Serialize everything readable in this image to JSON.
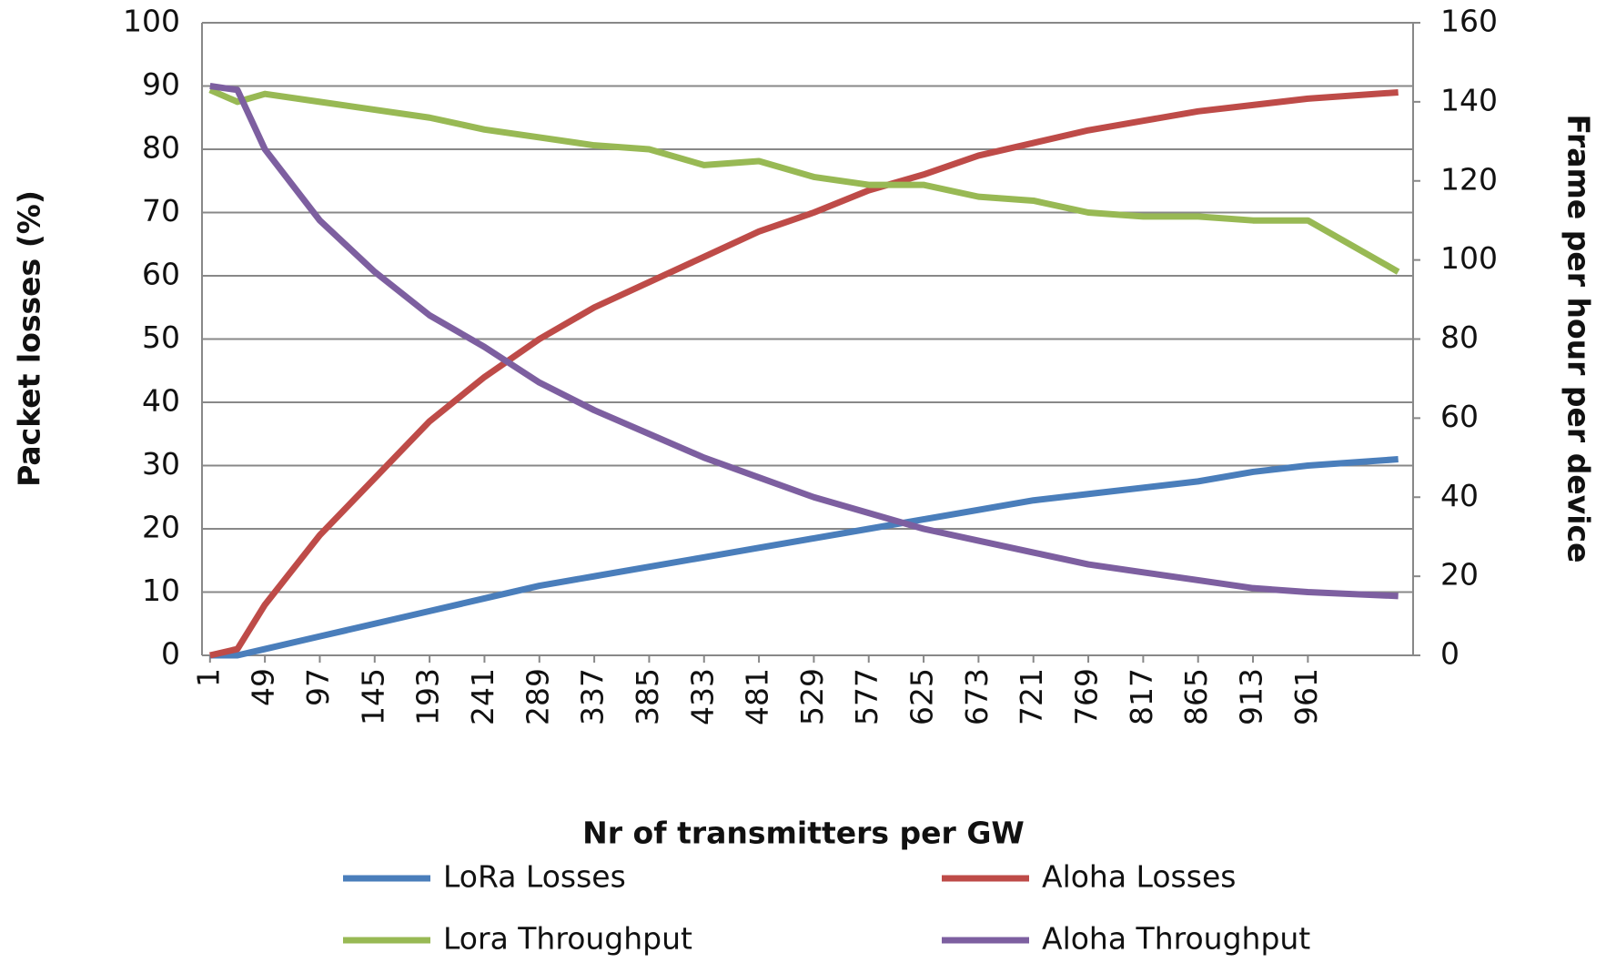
{
  "chart_data": {
    "type": "line",
    "x_label": "Nr of transmitters per GW",
    "y_label": "Packet losses (%)",
    "y2_label": "Frame per hour per device",
    "x": [
      1,
      25,
      49,
      97,
      145,
      193,
      241,
      289,
      337,
      385,
      433,
      481,
      529,
      577,
      625,
      673,
      721,
      769,
      817,
      865,
      913,
      961,
      1040
    ],
    "series": [
      {
        "name": "LoRa Losses",
        "color": "#4a7ebb",
        "values": [
          0,
          0,
          1,
          3,
          5,
          7,
          9,
          11,
          12.5,
          14,
          15.5,
          17,
          18.5,
          20,
          21.5,
          23,
          24.5,
          25.5,
          26.5,
          27.5,
          29,
          30,
          31
        ]
      },
      {
        "name": "Aloha Losses",
        "color": "#be4b48",
        "values": [
          0,
          1,
          8,
          19,
          28,
          37,
          44,
          50,
          55,
          59,
          63,
          67,
          70,
          73.5,
          76,
          79,
          81,
          83,
          84.5,
          86,
          87,
          88,
          89
        ]
      },
      {
        "name": "Lora Throughput",
        "color": "#98b954",
        "axis": "y2",
        "values": [
          143,
          140,
          142,
          140,
          138,
          136,
          133,
          131,
          129,
          128,
          124,
          125,
          121,
          119,
          119,
          116,
          115,
          112,
          111,
          111,
          110,
          110,
          97
        ]
      },
      {
        "name": "Aloha Throughput",
        "color": "#7d5fa0",
        "axis": "y2",
        "values": [
          144,
          143,
          128,
          110,
          97,
          86,
          78,
          69,
          62,
          56,
          50,
          45,
          40,
          36,
          32,
          29,
          26,
          23,
          21,
          19,
          17,
          16,
          15
        ]
      }
    ],
    "xlim": [
      -6,
      1053
    ],
    "xticks": [
      1,
      49,
      97,
      145,
      193,
      241,
      289,
      337,
      385,
      433,
      481,
      529,
      577,
      625,
      673,
      721,
      769,
      817,
      865,
      913,
      961
    ],
    "ylim": [
      0,
      100
    ],
    "yticks": [
      0,
      10,
      20,
      30,
      40,
      50,
      60,
      70,
      80,
      90,
      100
    ],
    "y2lim": [
      0,
      160
    ],
    "y2ticks": [
      0,
      20,
      40,
      60,
      80,
      100,
      120,
      140,
      160
    ],
    "grid": true,
    "legend": "bottom"
  }
}
